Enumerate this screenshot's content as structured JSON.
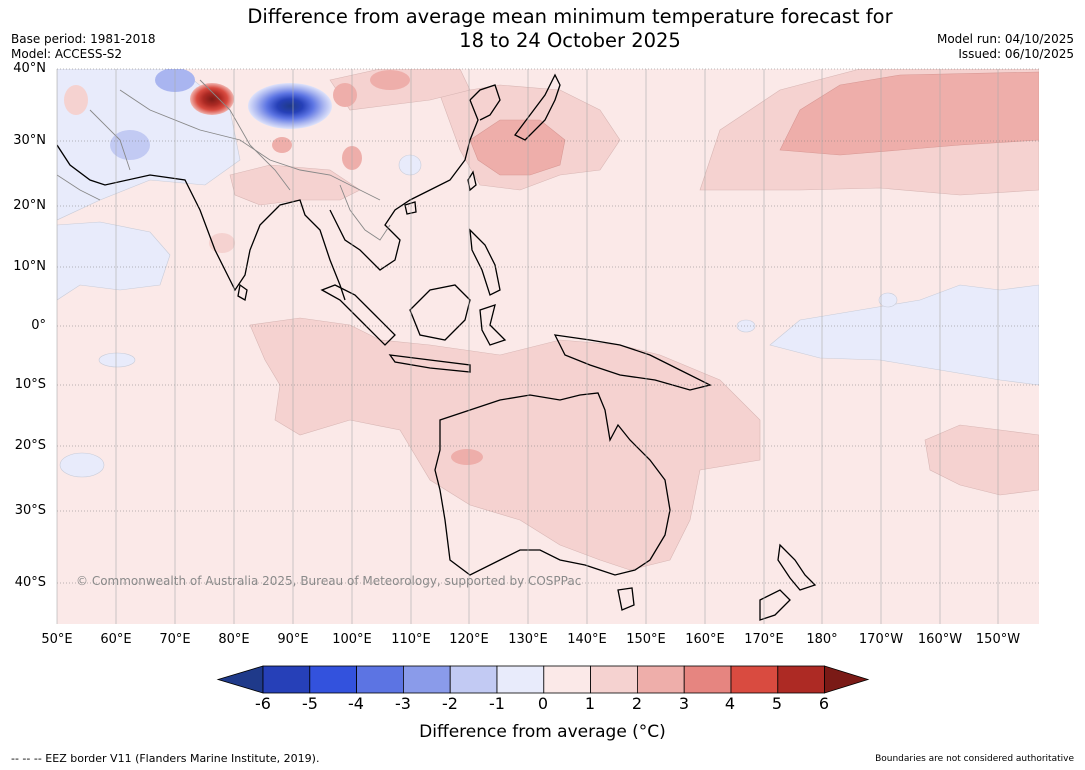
{
  "title": {
    "line1": "Difference from average mean minimum temperature forecast for",
    "line2": "18 to 24 October 2025"
  },
  "meta": {
    "base_period": "Base period: 1981-2018",
    "model": "Model: ACCESS-S2",
    "model_run": "Model run: 04/10/2025",
    "issued": "Issued: 06/10/2025"
  },
  "axes": {
    "lat_labels": [
      "40°N",
      "30°N",
      "20°N",
      "10°N",
      "0°",
      "10°S",
      "20°S",
      "30°S",
      "40°S"
    ],
    "lon_labels": [
      "50°E",
      "60°E",
      "70°E",
      "80°E",
      "90°E",
      "100°E",
      "110°E",
      "120°E",
      "130°E",
      "140°E",
      "150°E",
      "160°E",
      "170°E",
      "180°",
      "170°W",
      "160°W",
      "150°W"
    ]
  },
  "colorbar": {
    "label": "Difference from average (°C)",
    "ticks": [
      "-6",
      "-5",
      "-4",
      "-3",
      "-2",
      "-1",
      "0",
      "1",
      "2",
      "3",
      "4",
      "5",
      "6"
    ],
    "colors": [
      "#1f3a8a",
      "#2640b8",
      "#3352dd",
      "#5c74e3",
      "#8a9bea",
      "#c2caf3",
      "#e8ebfb",
      "#fbe9e8",
      "#f5d2d0",
      "#eeaeaa",
      "#e68580",
      "#d94b40",
      "#ad2a24",
      "#7a1a16"
    ]
  },
  "copyright": "© Commonwealth of Australia 2025, Bureau of Meteorology, supported by COSPPac",
  "footer": {
    "left": "--  --  -- EEZ border V11 (Flanders Marine Institute, 2019).",
    "right": "Boundaries are not considered authoritative"
  }
}
